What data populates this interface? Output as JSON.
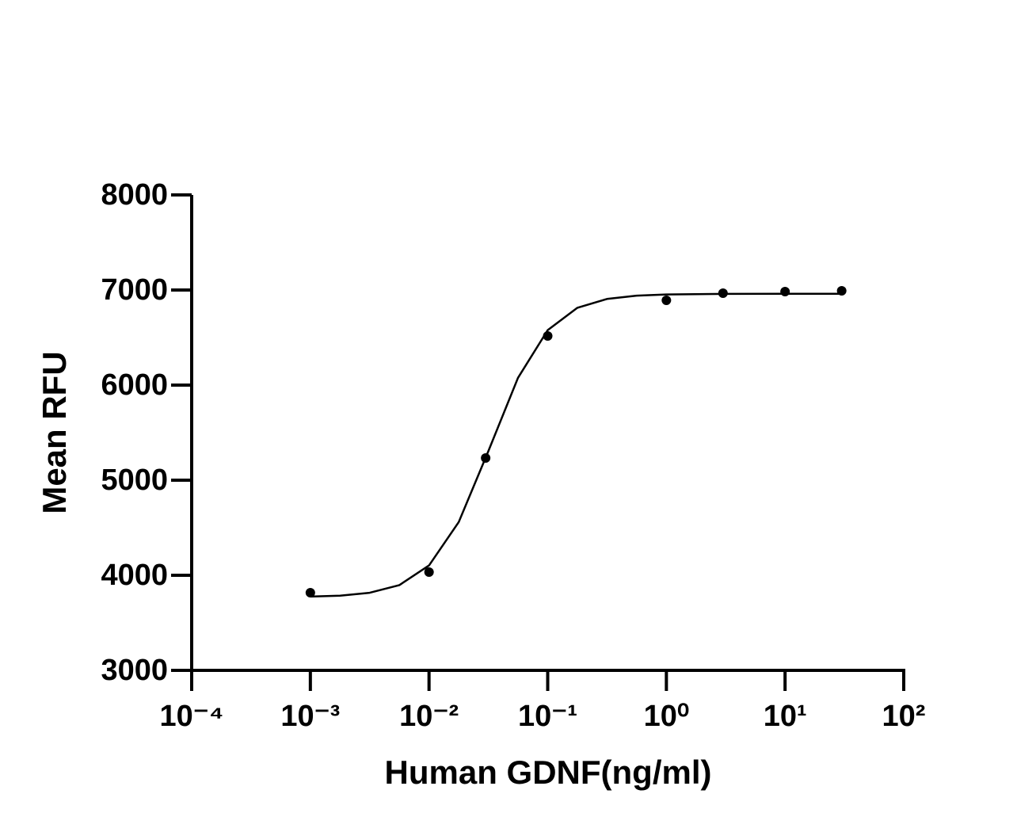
{
  "chart_data": {
    "type": "scatter",
    "x_label": "Human GDNF(ng/ml)",
    "y_label": "Mean RFU",
    "x_scale": "log",
    "xlim": [
      0.0001,
      100
    ],
    "xticks": [
      {
        "value": 0.0001,
        "label": "10⁻⁴"
      },
      {
        "value": 0.001,
        "label": "10⁻³"
      },
      {
        "value": 0.01,
        "label": "10⁻²"
      },
      {
        "value": 0.1,
        "label": "10⁻¹"
      },
      {
        "value": 1,
        "label": "10⁰"
      },
      {
        "value": 10,
        "label": "10¹"
      },
      {
        "value": 100,
        "label": "10²"
      }
    ],
    "ylim": [
      3000,
      8000
    ],
    "yticks": [
      3000,
      4000,
      5000,
      6000,
      7000,
      8000
    ],
    "grid": false,
    "series": [
      {
        "kind": "points",
        "color": "#000000",
        "x": [
          0.001,
          0.01,
          0.03,
          0.1,
          1,
          3,
          10,
          30
        ],
        "values": [
          3817,
          4033,
          5233,
          6517,
          6892,
          6967,
          6983,
          6992
        ]
      },
      {
        "kind": "line",
        "color": "#000000",
        "x": [
          0.001,
          0.00178,
          0.00316,
          0.00562,
          0.01,
          0.0178,
          0.0316,
          0.0562,
          0.1,
          0.178,
          0.316,
          0.562,
          1,
          3.16,
          10,
          30
        ],
        "values": [
          3776,
          3786,
          3816,
          3897,
          4103,
          4560,
          5304,
          6077,
          6578,
          6813,
          6906,
          6941,
          6953,
          6959,
          6960,
          6960
        ]
      }
    ]
  }
}
